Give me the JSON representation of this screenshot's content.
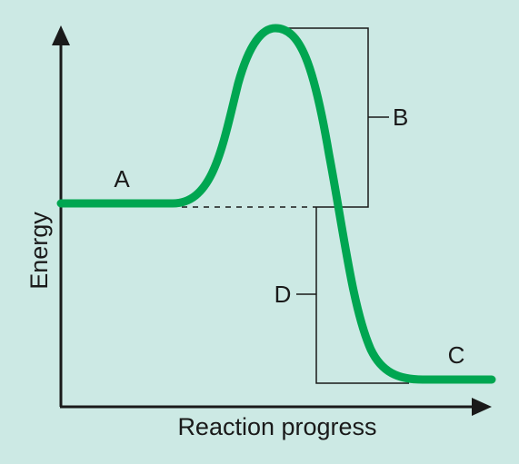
{
  "diagram": {
    "axes": {
      "x_label": "Reaction progress",
      "y_label": "Energy"
    },
    "labels": {
      "reactants": "A",
      "activation_energy": "B",
      "products": "C",
      "energy_change": "D"
    },
    "colors": {
      "curve": "#00a651",
      "axes": "#1a1a1a",
      "background": "#cce9e4"
    }
  }
}
